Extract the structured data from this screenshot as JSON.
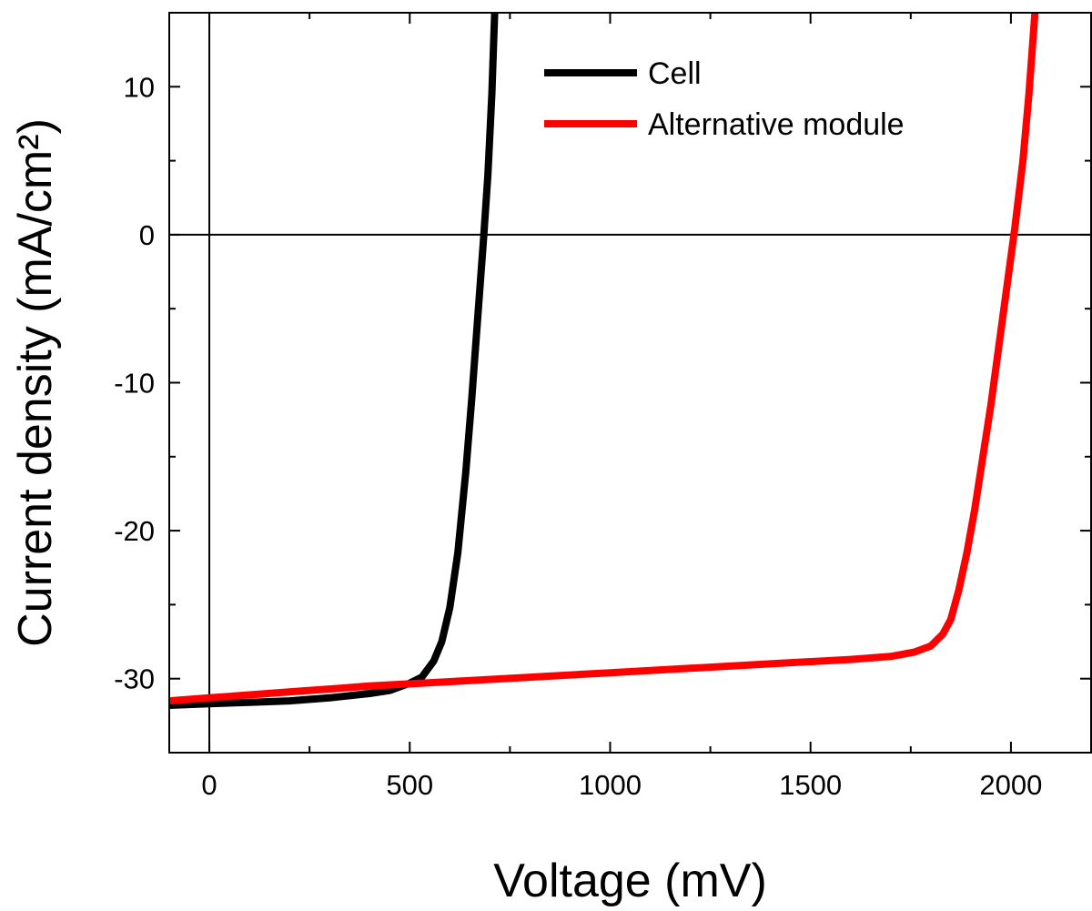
{
  "chart_data": {
    "type": "line",
    "xlabel": "Voltage (mV)",
    "ylabel": "Current density (mA/cm²)",
    "xlim": [
      -100,
      2200
    ],
    "ylim": [
      -35,
      15
    ],
    "x_ticks": [
      0,
      500,
      1000,
      1500,
      2000
    ],
    "y_ticks": [
      -30,
      -20,
      -10,
      0,
      10
    ],
    "x_minor_step": 250,
    "y_minor_step": 5,
    "zero_lines": true,
    "grid": false,
    "legend_position": "top-right",
    "series": [
      {
        "name": "Cell",
        "color": "#000000",
        "x": [
          -100,
          0,
          100,
          200,
          300,
          400,
          450,
          500,
          530,
          560,
          580,
          600,
          620,
          640,
          655,
          670,
          685,
          695,
          705,
          712
        ],
        "y": [
          -31.8,
          -31.7,
          -31.6,
          -31.5,
          -31.3,
          -31.0,
          -30.8,
          -30.3,
          -29.9,
          -28.8,
          -27.5,
          -25.2,
          -21.5,
          -16.0,
          -11.0,
          -5.5,
          0.0,
          4.0,
          9.5,
          15.0
        ]
      },
      {
        "name": "Alternative module",
        "color": "#ff0000",
        "x": [
          -100,
          0,
          200,
          400,
          600,
          800,
          1000,
          1200,
          1400,
          1600,
          1700,
          1760,
          1800,
          1830,
          1850,
          1870,
          1890,
          1910,
          1930,
          1950,
          1970,
          1990,
          2010,
          2030,
          2045,
          2060
        ],
        "y": [
          -31.5,
          -31.3,
          -30.9,
          -30.5,
          -30.2,
          -29.9,
          -29.6,
          -29.3,
          -29.0,
          -28.7,
          -28.5,
          -28.2,
          -27.8,
          -27.0,
          -26.0,
          -24.0,
          -21.5,
          -18.5,
          -15.0,
          -11.5,
          -7.5,
          -3.5,
          0.5,
          5.0,
          9.5,
          15.0
        ]
      }
    ]
  }
}
